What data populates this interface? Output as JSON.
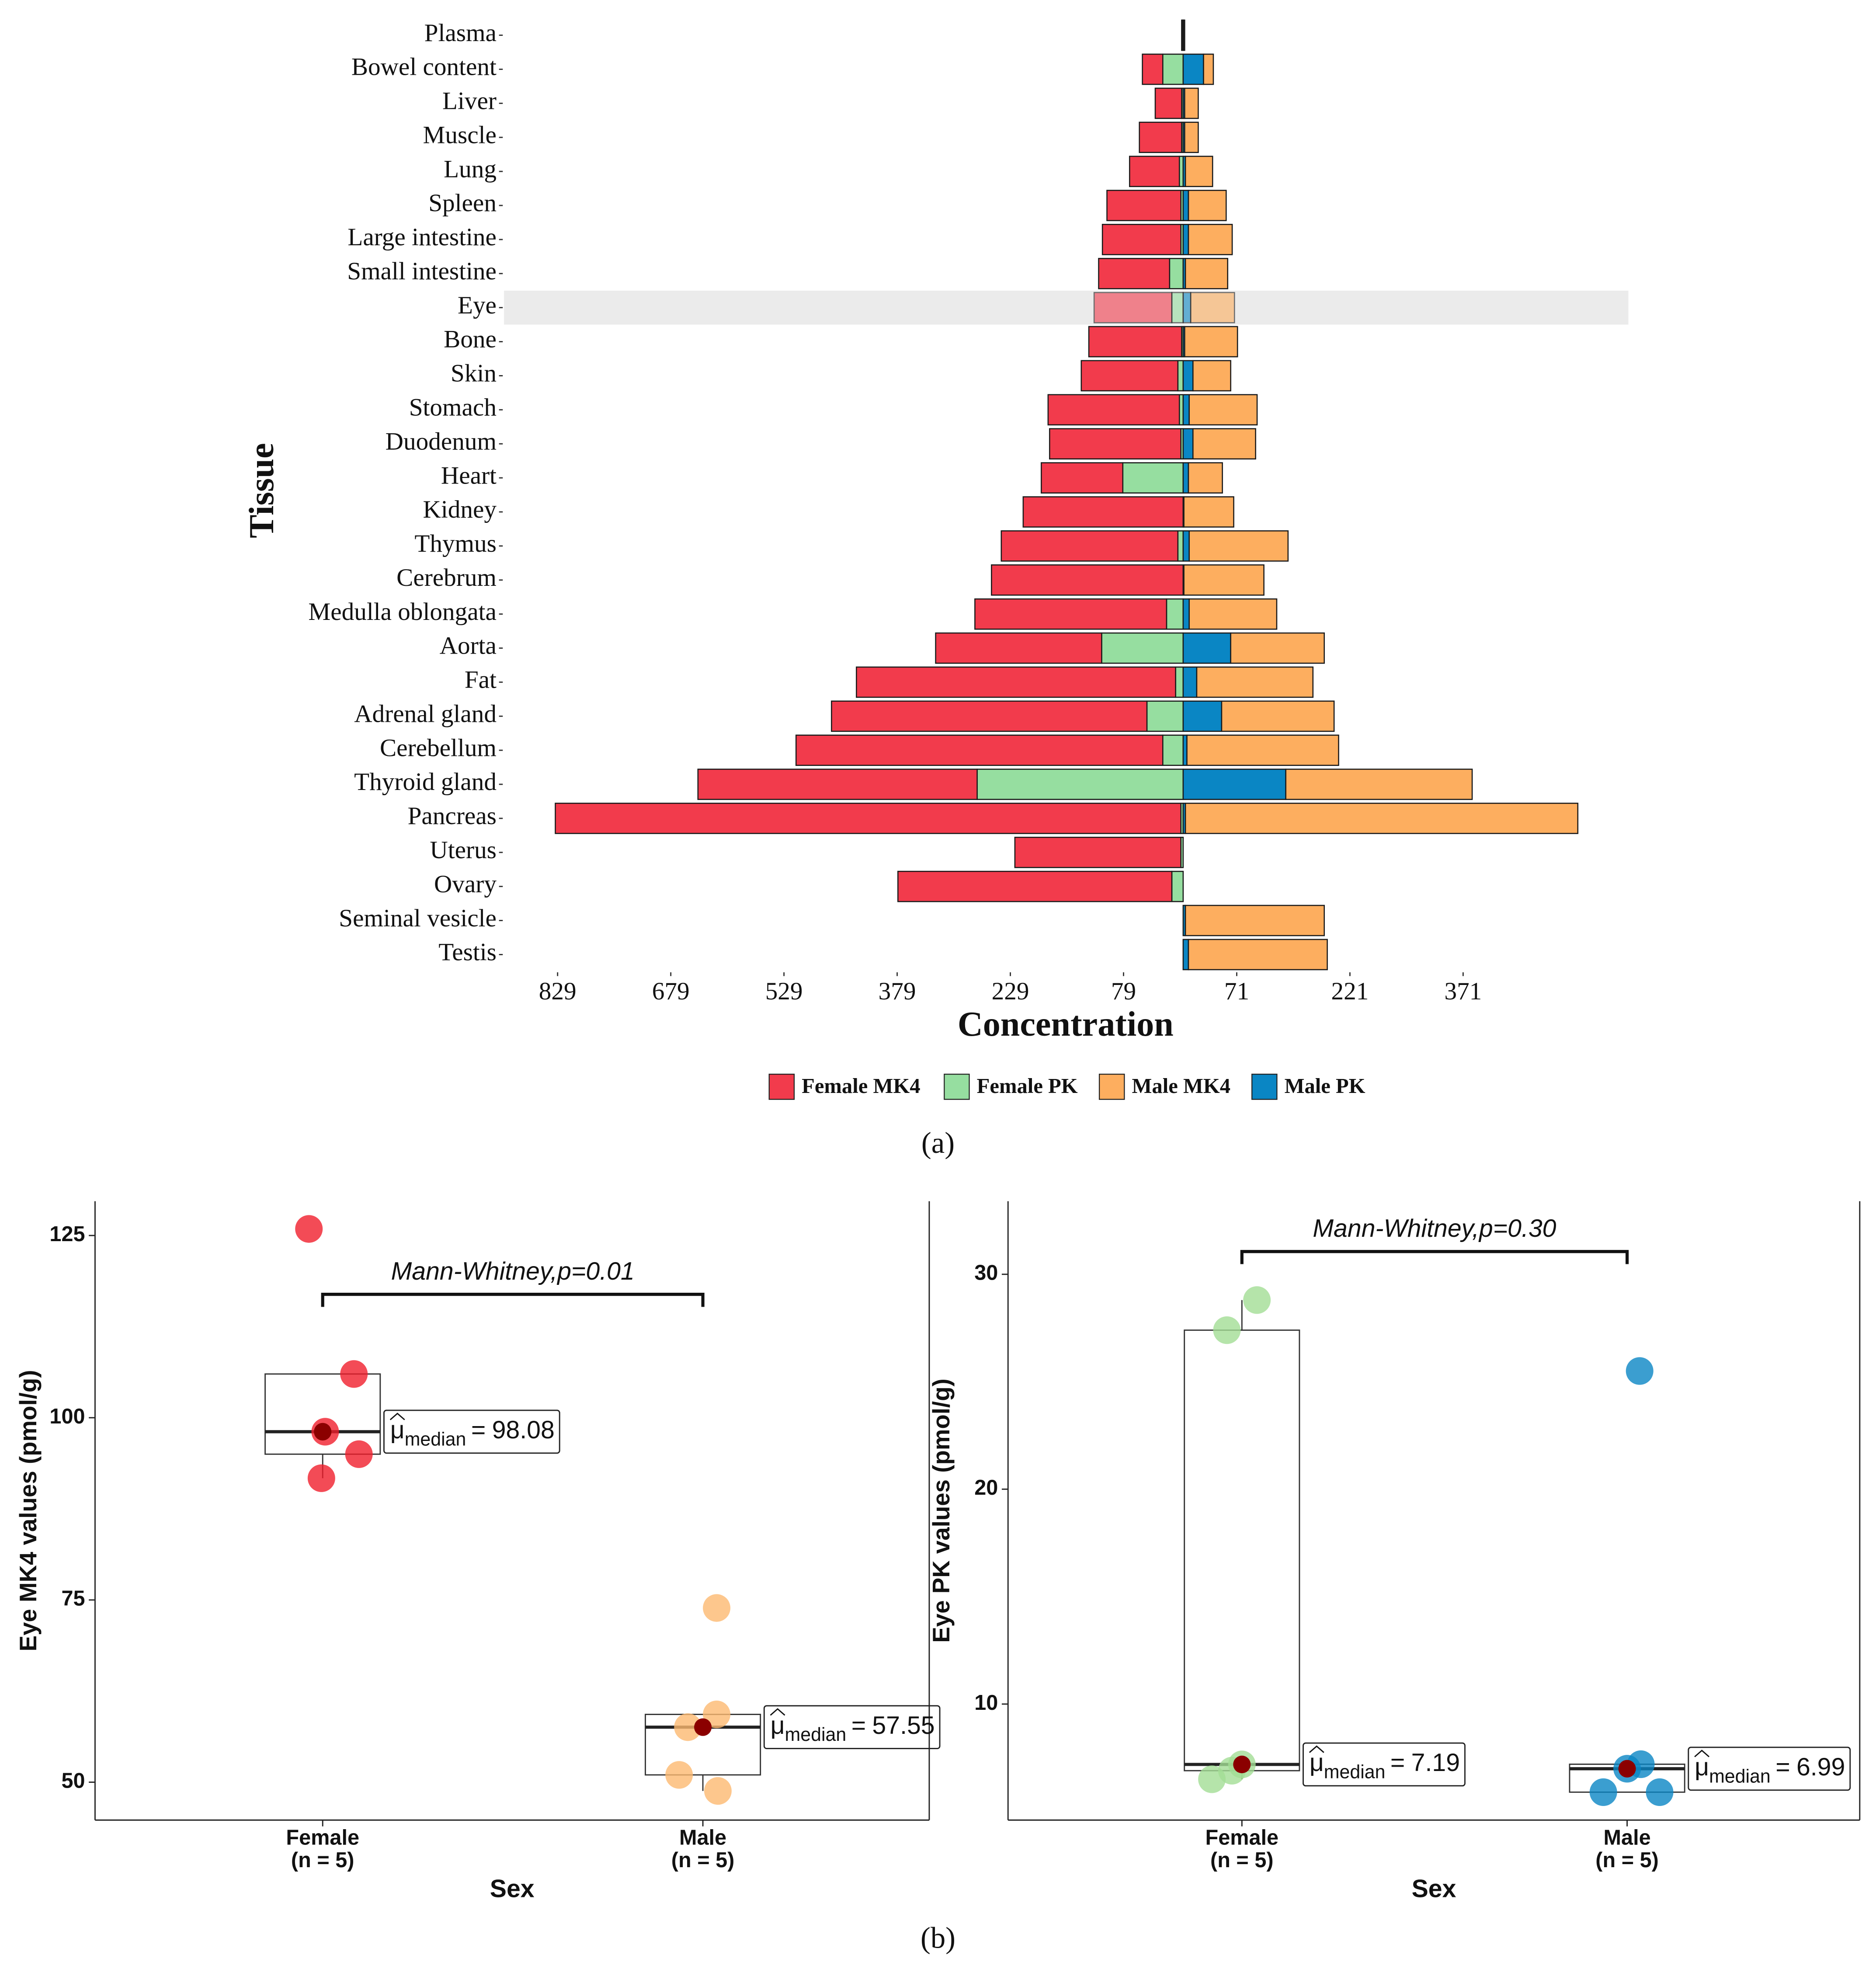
{
  "chart_data": [
    {
      "type": "diverging_bar",
      "panel_label": "(a)",
      "xlabel": "Concentration",
      "ylabel": "Tissue",
      "categories": [
        "Plasma",
        "Bowel content",
        "Liver",
        "Muscle",
        "Lung",
        "Spleen",
        "Large intestine",
        "Small intestine",
        "Eye",
        "Bone",
        "Skin",
        "Stomach",
        "Duodenum",
        "Heart",
        "Kidney",
        "Thymus",
        "Cerebrum",
        "Medulla oblongata",
        "Aorta",
        "Fat",
        "Adrenal gland",
        "Cerebellum",
        "Thyroid gland",
        "Pancreas",
        "Uterus",
        "Ovary",
        "Seminal vesicle",
        "Testis"
      ],
      "series": [
        {
          "name": "Female MK4",
          "color": "#f23b4c",
          "values": [
            -1,
            -27,
            -35,
            -56,
            -66,
            -98,
            -104,
            -94,
            -103,
            -123,
            -128,
            -174,
            -174,
            -108,
            -212,
            -234,
            -254,
            -254,
            -220,
            -423,
            -418,
            -486,
            -370,
            -829,
            -220,
            -363,
            0,
            0
          ]
        },
        {
          "name": "Female PK",
          "color": "#96dea0",
          "values": [
            -1,
            -27,
            -2,
            -2,
            -5,
            -3,
            -3,
            -18,
            -15,
            -2,
            -7,
            -5,
            -3,
            -80,
            0,
            -7,
            0,
            -22,
            -108,
            -10,
            -48,
            -27,
            -273,
            -3,
            -3,
            -15,
            0,
            0
          ]
        },
        {
          "name": "Male MK4",
          "color": "#fdae5f",
          "values": [
            1,
            13,
            18,
            18,
            36,
            50,
            58,
            56,
            58,
            70,
            50,
            90,
            83,
            45,
            66,
            131,
            106,
            116,
            124,
            154,
            149,
            201,
            247,
            520,
            0,
            0,
            184,
            184
          ]
        },
        {
          "name": "Male PK",
          "color": "#0a86c4",
          "values": [
            1,
            27,
            2,
            2,
            3,
            7,
            7,
            3,
            10,
            2,
            13,
            8,
            13,
            7,
            1,
            8,
            1,
            8,
            63,
            18,
            51,
            5,
            136,
            3,
            0,
            0,
            3,
            7
          ]
        }
      ],
      "xlim": [
        -900,
        590
      ],
      "xticks": [
        {
          "value": -829,
          "label": "829"
        },
        {
          "value": -679,
          "label": "679"
        },
        {
          "value": -529,
          "label": "529"
        },
        {
          "value": -379,
          "label": "379"
        },
        {
          "value": -229,
          "label": "229"
        },
        {
          "value": -79,
          "label": "79"
        },
        71,
        221,
        371
      ],
      "highlight": "Eye",
      "legend": "bottom"
    },
    {
      "type": "box",
      "panel_label": "(b)",
      "ylabel": "Eye MK4 values (pmol/g)",
      "xlabel": "Sex",
      "categories": [
        "Female",
        "Male"
      ],
      "sublabels": [
        "(n = 5)",
        "(n = 5)"
      ],
      "colors": [
        "#f01e2c",
        "#fdb971"
      ],
      "points": [
        [
          125.9,
          106.0,
          98.08,
          95.0,
          91.7
        ],
        [
          73.9,
          59.3,
          57.55,
          51.0,
          48.8
        ]
      ],
      "q1": [
        95.0,
        51.0
      ],
      "median": [
        98.08,
        57.55
      ],
      "q3": [
        106.0,
        59.3
      ],
      "whisker_low": [
        91.7,
        48.8
      ],
      "whisker_high": [
        106.0,
        59.3
      ],
      "stat_label": {
        "symbol": "μ",
        "subscript": "median",
        "operator": "="
      },
      "annotation": "Mann-Whitney,p=0.01",
      "ylim": [
        44.8,
        129.7
      ],
      "yticks": [
        50,
        75,
        100,
        125
      ]
    },
    {
      "type": "box",
      "ylabel": "Eye PK values (pmol/g)",
      "xlabel": "Sex",
      "categories": [
        "Female",
        "Male"
      ],
      "sublabels": [
        "(n = 5)",
        "(n = 5)"
      ],
      "colors": [
        "#a3dd95",
        "#0a86c4"
      ],
      "points": [
        [
          28.8,
          27.4,
          7.19,
          6.9,
          6.5
        ],
        [
          25.5,
          7.2,
          6.99,
          5.9,
          5.9
        ]
      ],
      "q1": [
        6.9,
        5.9
      ],
      "median": [
        7.19,
        6.99
      ],
      "q3": [
        27.4,
        7.2
      ],
      "whisker_low": [
        6.5,
        5.9
      ],
      "whisker_high": [
        28.8,
        7.2
      ],
      "stat_label": {
        "symbol": "μ",
        "subscript": "median",
        "operator": "="
      },
      "annotation": "Mann-Whitney,p=0.30",
      "ylim": [
        4.6,
        33.4
      ],
      "yticks": [
        10,
        20,
        30
      ]
    }
  ]
}
